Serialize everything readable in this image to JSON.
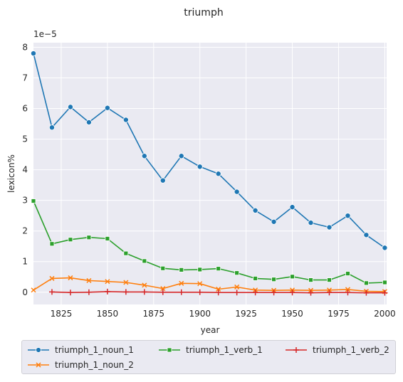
{
  "chart_data": {
    "type": "line",
    "title": "triumph",
    "xlabel": "year",
    "ylabel": "lexicon%",
    "y_offset_label": "1e−5",
    "xlim": [
      1810,
      2001
    ],
    "ylim": [
      -0.4,
      8.15
    ],
    "x_ticks": [
      1825,
      1850,
      1875,
      1900,
      1925,
      1950,
      1975,
      2000
    ],
    "y_ticks": [
      0,
      1,
      2,
      3,
      4,
      5,
      6,
      7,
      8
    ],
    "grid": true,
    "legend_position": "bottom",
    "series": [
      {
        "name": "triumph_1_noun_1",
        "color": "#1f77b4",
        "marker": "circle",
        "x": [
          1810,
          1820,
          1830,
          1840,
          1850,
          1860,
          1870,
          1880,
          1890,
          1900,
          1910,
          1920,
          1930,
          1940,
          1950,
          1960,
          1970,
          1980,
          1990,
          2000
        ],
        "y": [
          7.8,
          5.38,
          6.05,
          5.55,
          6.02,
          5.63,
          4.45,
          3.65,
          4.45,
          4.1,
          3.87,
          3.28,
          2.67,
          2.3,
          2.78,
          2.27,
          2.12,
          2.5,
          1.87,
          1.45
        ]
      },
      {
        "name": "triumph_1_noun_2",
        "color": "#ff7f0e",
        "marker": "x",
        "x": [
          1810,
          1820,
          1830,
          1840,
          1850,
          1860,
          1870,
          1880,
          1890,
          1900,
          1910,
          1920,
          1930,
          1940,
          1950,
          1960,
          1970,
          1980,
          1990,
          2000
        ],
        "y": [
          0.07,
          0.45,
          0.47,
          0.38,
          0.35,
          0.32,
          0.23,
          0.12,
          0.29,
          0.28,
          0.1,
          0.17,
          0.07,
          0.06,
          0.07,
          0.06,
          0.07,
          0.09,
          0.03,
          0.02
        ]
      },
      {
        "name": "triumph_1_verb_1",
        "color": "#2ca02c",
        "marker": "square",
        "x": [
          1810,
          1820,
          1830,
          1840,
          1850,
          1860,
          1870,
          1880,
          1890,
          1900,
          1910,
          1920,
          1930,
          1940,
          1950,
          1960,
          1970,
          1980,
          1990,
          2000
        ],
        "y": [
          2.98,
          1.58,
          1.72,
          1.79,
          1.75,
          1.27,
          1.02,
          0.78,
          0.73,
          0.74,
          0.77,
          0.63,
          0.45,
          0.42,
          0.51,
          0.4,
          0.4,
          0.61,
          0.3,
          0.32
        ]
      },
      {
        "name": "triumph_1_verb_2",
        "color": "#d62728",
        "marker": "plus",
        "x": [
          1820,
          1830,
          1840,
          1850,
          1860,
          1870,
          1880,
          1890,
          1900,
          1910,
          1920,
          1930,
          1940,
          1950,
          1960,
          1970,
          1980,
          1990,
          2000
        ],
        "y": [
          0.01,
          -0.01,
          0.0,
          0.02,
          0.01,
          0.01,
          0.0,
          0.0,
          0.0,
          -0.01,
          -0.01,
          -0.01,
          -0.01,
          -0.01,
          -0.02,
          -0.01,
          -0.01,
          -0.02,
          -0.02
        ]
      }
    ]
  }
}
